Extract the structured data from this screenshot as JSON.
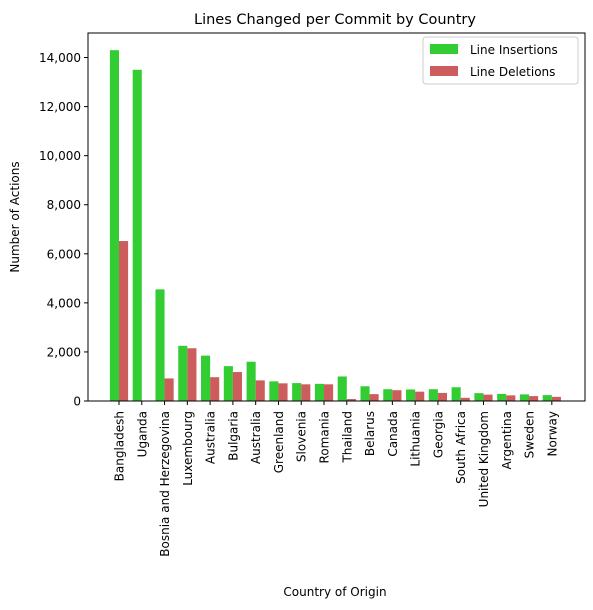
{
  "chart_data": {
    "type": "bar",
    "title": "Lines Changed per Commit by Country",
    "xlabel": "Country of Origin",
    "ylabel": "Number of Actions",
    "ylim": [
      0,
      15000
    ],
    "yticks": [
      0,
      2000,
      4000,
      6000,
      8000,
      10000,
      12000,
      14000
    ],
    "ytick_labels": [
      "0",
      "2,000",
      "4,000",
      "6,000",
      "8,000",
      "10,000",
      "12,000",
      "14,000"
    ],
    "legend_position": "top-right",
    "grid": false,
    "categories": [
      "Bangladesh",
      "Uganda",
      "Bosnia and Herzegovina",
      "Luxembourg",
      "Australia",
      "Bulgaria",
      "Australia",
      "Greenland",
      "Slovenia",
      "Romania",
      "Thailand",
      "Belarus",
      "Canada",
      "Lithuania",
      "Georgia",
      "South Africa",
      "United Kingdom",
      "Argentina",
      "Sweden",
      "Norway"
    ],
    "series": [
      {
        "name": "Line Insertions",
        "color": "#32cd32",
        "values": [
          14300,
          13500,
          4550,
          2250,
          1850,
          1420,
          1600,
          800,
          730,
          700,
          1000,
          600,
          480,
          470,
          480,
          560,
          320,
          290,
          270,
          240
        ]
      },
      {
        "name": "Line Deletions",
        "color": "#cd5c5c",
        "values": [
          6520,
          0,
          920,
          2150,
          970,
          1180,
          840,
          720,
          680,
          680,
          80,
          280,
          440,
          380,
          330,
          130,
          260,
          230,
          200,
          170
        ]
      }
    ]
  }
}
